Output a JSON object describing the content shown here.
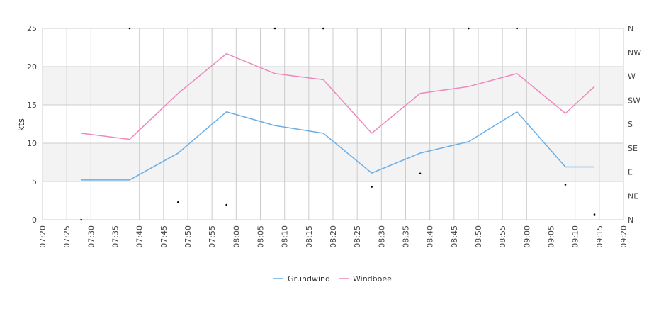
{
  "chart_data": {
    "type": "line",
    "ylabel": "kts",
    "ylim": [
      0,
      25
    ],
    "y_ticks": [
      "0",
      "5",
      "10",
      "15",
      "20",
      "25"
    ],
    "y2_ticks": [
      "N",
      "NE",
      "E",
      "SE",
      "S",
      "SW",
      "W",
      "NW",
      "N"
    ],
    "x_ticks": [
      "07:20",
      "07:25",
      "07:30",
      "07:35",
      "07:40",
      "07:45",
      "07:50",
      "07:55",
      "08:00",
      "08:05",
      "08:10",
      "08:15",
      "08:20",
      "08:25",
      "08:30",
      "08:35",
      "08:40",
      "08:45",
      "08:50",
      "08:55",
      "09:00",
      "09:05",
      "09:10",
      "09:15",
      "09:20"
    ],
    "x_range": [
      "07:20",
      "09:20"
    ],
    "grid": true,
    "legend_position": "bottom-center",
    "colors": {
      "grundwind": "#6aaee8",
      "windboee": "#ee88bb",
      "direction": "#000000",
      "band": "#f3f3f3",
      "grid": "#cccccc"
    },
    "series": [
      {
        "name": "Grundwind",
        "x": [
          "07:28",
          "07:38",
          "07:48",
          "07:58",
          "08:08",
          "08:18",
          "08:28",
          "08:38",
          "08:48",
          "08:58",
          "09:08",
          "09:14"
        ],
        "values": [
          5.2,
          5.2,
          8.7,
          14.1,
          12.3,
          11.3,
          6.1,
          8.7,
          10.2,
          14.1,
          6.9,
          6.9
        ]
      },
      {
        "name": "Windboee",
        "x": [
          "07:28",
          "07:38",
          "07:48",
          "07:58",
          "08:08",
          "08:18",
          "08:28",
          "08:38",
          "08:48",
          "08:58",
          "09:08",
          "09:14"
        ],
        "values": [
          11.3,
          10.5,
          16.5,
          21.7,
          19.1,
          18.3,
          11.3,
          16.5,
          17.4,
          19.1,
          13.9,
          17.4
        ]
      }
    ],
    "direction_points": {
      "x": [
        "07:28",
        "07:38",
        "07:48",
        "07:58",
        "08:08",
        "08:18",
        "08:28",
        "08:38",
        "08:48",
        "08:58",
        "09:08",
        "09:14"
      ],
      "degrees": [
        0,
        360,
        33,
        28,
        360,
        360,
        62,
        87,
        360,
        360,
        66,
        10
      ]
    }
  }
}
